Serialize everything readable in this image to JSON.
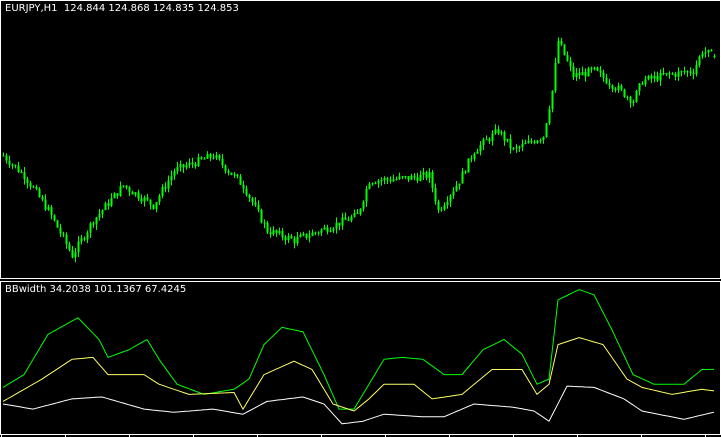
{
  "main_chart": {
    "symbol_label": "EURJPY,H1",
    "ohlc_label": "124.844 124.868 124.835 124.853",
    "candle_color": "#00ff00",
    "background": "#000000"
  },
  "indicator": {
    "name_label": "BBwidth",
    "values_label": "34.2038 101.1367 67.4245"
  },
  "chart_data": [
    {
      "type": "candlestick",
      "title": "EURJPY,H1",
      "bars": 238,
      "ylim": [
        123.25,
        125.25
      ],
      "close_path": {
        "bar": [
          0,
          7,
          15,
          23,
          30,
          40,
          50,
          57,
          70,
          80,
          88,
          97,
          110,
          118,
          122,
          133,
          142,
          145,
          152,
          157,
          165,
          170,
          180,
          183,
          185,
          190,
          197,
          210,
          213,
          220,
          230,
          233,
          237
        ],
        "price": [
          124.134,
          123.99,
          123.738,
          123.414,
          123.666,
          123.918,
          123.774,
          124.026,
          124.134,
          123.918,
          123.594,
          123.522,
          123.63,
          123.702,
          123.954,
          123.968,
          123.99,
          123.738,
          123.954,
          124.17,
          124.314,
          124.17,
          124.278,
          124.602,
          124.962,
          124.71,
          124.746,
          124.53,
          124.674,
          124.71,
          124.746,
          124.89,
          124.853
        ]
      },
      "last_bar": {
        "open": 124.844,
        "high": 124.868,
        "low": 124.835,
        "close": 124.853
      }
    },
    {
      "type": "line",
      "title": "BBwidth",
      "ylim": [
        0,
        238
      ],
      "series": [
        {
          "color": "#00ff00",
          "bar": [
            0,
            7,
            15,
            25,
            32,
            35,
            42,
            48,
            52,
            58,
            67,
            77,
            82,
            87,
            93,
            100,
            107,
            112,
            117,
            122,
            127,
            133,
            140,
            147,
            153,
            160,
            167,
            173,
            178,
            182,
            185,
            192,
            197,
            203,
            210,
            217,
            227,
            233,
            237
          ],
          "values": [
            73,
            93,
            156,
            182,
            148,
            120,
            132,
            148,
            117,
            78,
            62,
            70,
            86,
            140,
            167,
            160,
            93,
            39,
            39,
            78,
            117,
            120,
            117,
            93,
            93,
            132,
            148,
            125,
            78,
            86,
            210,
            226,
            218,
            163,
            93,
            78,
            78,
            101,
            101.1367
          ]
        },
        {
          "color": "#ffff66",
          "bar": [
            0,
            13,
            23,
            30,
            35,
            47,
            52,
            62,
            77,
            80,
            87,
            97,
            103,
            110,
            117,
            122,
            127,
            137,
            143,
            153,
            163,
            173,
            178,
            182,
            185,
            192,
            200,
            208,
            213,
            223,
            233,
            237
          ],
          "values": [
            51,
            86,
            117,
            120,
            93,
            93,
            78,
            62,
            65,
            39,
            93,
            114,
            101,
            47,
            36,
            55,
            78,
            78,
            55,
            62,
            101,
            101,
            62,
            78,
            140,
            151,
            140,
            86,
            73,
            62,
            70,
            67.4245
          ]
        },
        {
          "color": "#ffffff",
          "bar": [
            0,
            10,
            23,
            33,
            47,
            57,
            70,
            80,
            88,
            100,
            107,
            113,
            120,
            127,
            140,
            147,
            157,
            170,
            177,
            182,
            188,
            197,
            207,
            213,
            227,
            237
          ],
          "values": [
            47,
            39,
            55,
            58,
            39,
            34,
            39,
            31,
            51,
            58,
            47,
            16,
            20,
            31,
            27,
            27,
            47,
            42,
            36,
            20,
            75,
            73,
            55,
            36,
            23,
            34.2038
          ]
        }
      ]
    }
  ]
}
